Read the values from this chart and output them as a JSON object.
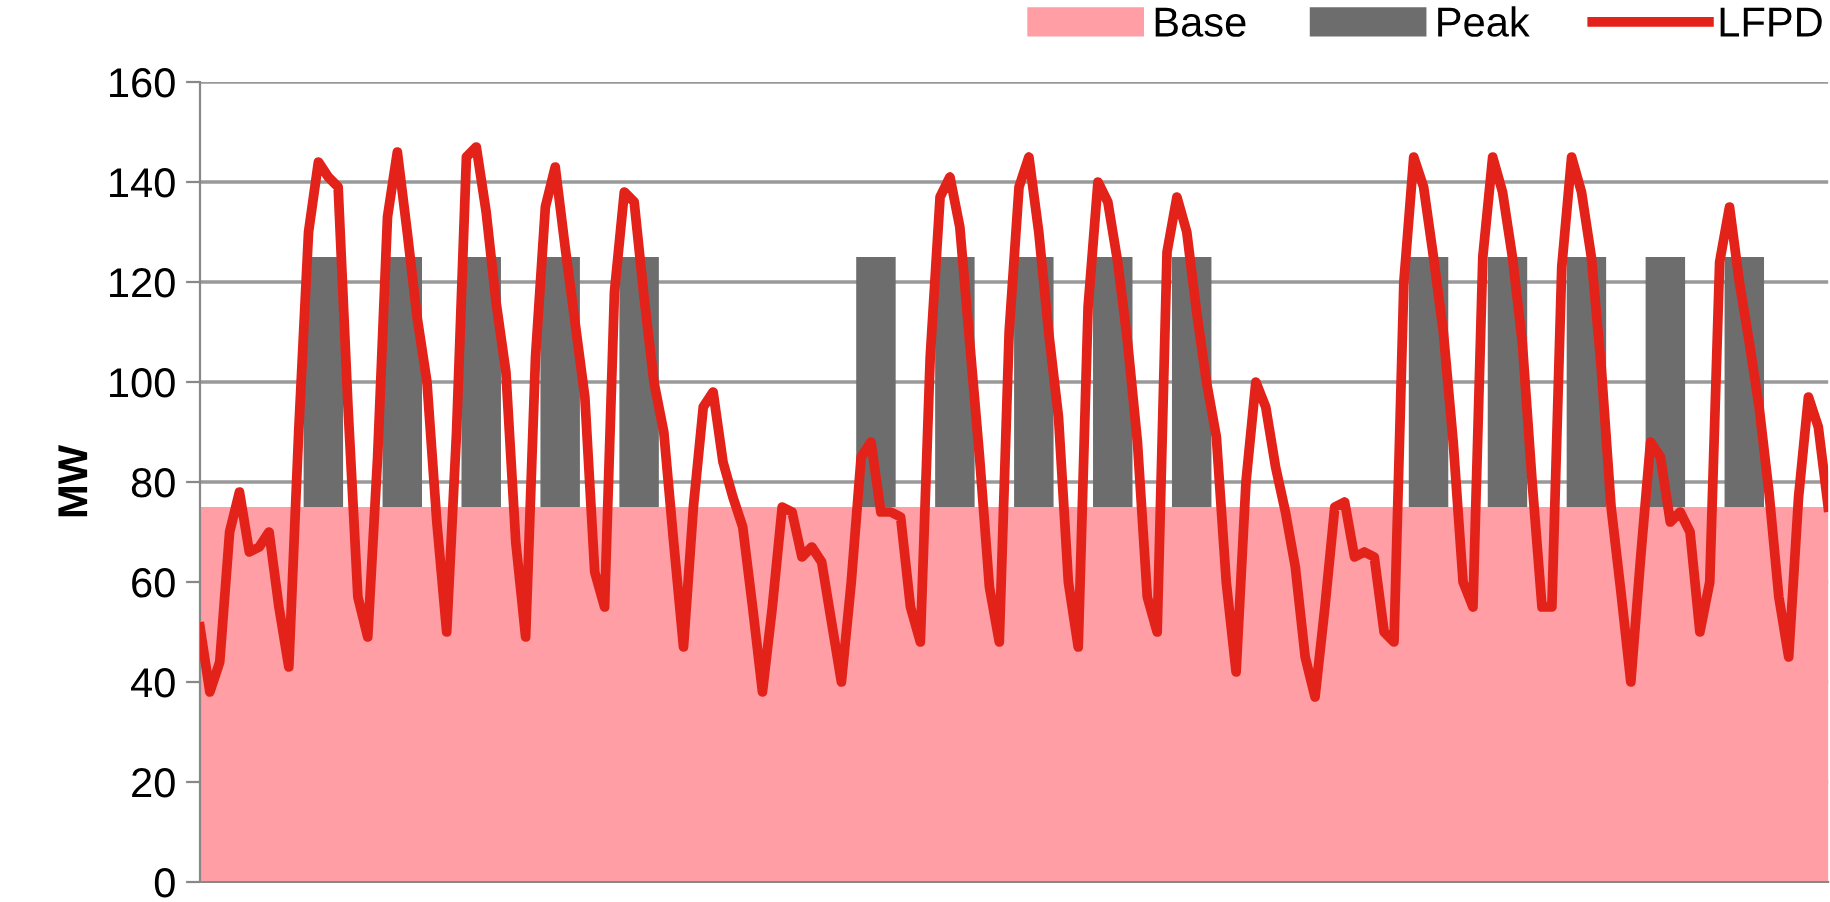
{
  "chart_data": {
    "type": "line",
    "ylabel": "MW",
    "stacked": true,
    "categories": [
      null,
      null,
      null,
      null,
      null,
      null,
      null,
      null,
      null,
      null,
      null,
      null,
      null,
      null,
      null,
      null,
      null,
      null,
      null,
      null,
      null,
      null,
      null,
      null,
      null,
      null,
      null,
      null,
      null,
      null,
      null,
      null,
      null,
      null,
      null,
      null,
      null,
      null,
      null,
      null,
      null,
      null,
      null,
      null,
      null,
      null,
      null,
      null,
      null,
      null,
      null,
      null,
      null,
      null,
      null,
      null,
      null,
      null,
      null,
      null,
      null,
      null,
      null,
      null,
      null,
      null,
      null,
      null,
      null,
      null,
      null,
      null,
      null,
      null,
      null,
      null,
      null,
      null,
      null,
      null,
      null,
      null,
      null,
      null,
      null,
      null,
      null,
      null,
      null,
      null,
      null,
      null,
      null,
      null,
      null,
      null,
      null,
      null,
      null,
      null,
      null,
      null,
      null,
      null,
      null,
      null,
      null,
      null,
      null,
      null,
      null,
      null,
      null,
      null,
      null,
      null,
      null,
      null,
      null,
      null,
      null,
      null,
      null,
      null,
      null,
      null,
      null,
      null,
      null,
      null,
      null,
      null,
      null,
      null,
      null,
      null,
      null,
      null,
      null,
      null,
      null,
      null,
      null,
      null,
      null,
      null,
      null,
      null,
      null,
      null,
      null,
      null,
      null,
      null,
      null,
      null,
      null,
      null,
      null,
      null,
      null,
      null,
      null,
      null,
      null,
      null
    ],
    "series": [
      {
        "name": "Base",
        "type": "area",
        "color": "#ff9ea5",
        "values": [
          75,
          75,
          75,
          75,
          75,
          75,
          75,
          75,
          75,
          75,
          75,
          75,
          75,
          75,
          75,
          75,
          75,
          75,
          75,
          75,
          75,
          75,
          75,
          75,
          75,
          75,
          75,
          75,
          75,
          75,
          75,
          75,
          75,
          75,
          75,
          75,
          75,
          75,
          75,
          75,
          75,
          75,
          75,
          75,
          75,
          75,
          75,
          75,
          75,
          75,
          75,
          75,
          75,
          75,
          75,
          75,
          75,
          75,
          75,
          75,
          75,
          75,
          75,
          75,
          75,
          75,
          75,
          75,
          75,
          75,
          75,
          75,
          75,
          75,
          75,
          75,
          75,
          75,
          75,
          75,
          75,
          75,
          75,
          75,
          75,
          75,
          75,
          75,
          75,
          75,
          75,
          75,
          75,
          75,
          75,
          75,
          75,
          75,
          75,
          75,
          75,
          75,
          75,
          75,
          75,
          75,
          75,
          75,
          75,
          75,
          75,
          75,
          75,
          75,
          75,
          75,
          75,
          75,
          75,
          75,
          75,
          75,
          75,
          75,
          75,
          75,
          75,
          75,
          75,
          75,
          75,
          75,
          75,
          75,
          75,
          75,
          75,
          75,
          75,
          75,
          75,
          75,
          75,
          75,
          75,
          75,
          75,
          75,
          75,
          75,
          75,
          75,
          75,
          75,
          75,
          75,
          75,
          75,
          75,
          75,
          75,
          75,
          75,
          75,
          75,
          75
        ]
      },
      {
        "name": "Peak",
        "type": "area",
        "color": "#6d6d6d",
        "values": [
          null,
          null,
          null,
          null,
          null,
          null,
          null,
          null,
          null,
          null,
          null,
          50,
          50,
          50,
          50,
          null,
          null,
          null,
          null,
          50,
          50,
          50,
          50,
          null,
          null,
          null,
          null,
          50,
          50,
          50,
          50,
          null,
          null,
          null,
          null,
          50,
          50,
          50,
          50,
          null,
          null,
          null,
          null,
          50,
          50,
          50,
          50,
          null,
          null,
          null,
          null,
          null,
          null,
          null,
          null,
          null,
          null,
          null,
          null,
          null,
          null,
          null,
          null,
          null,
          null,
          null,
          null,
          50,
          50,
          50,
          50,
          null,
          null,
          null,
          null,
          50,
          50,
          50,
          50,
          null,
          null,
          null,
          null,
          50,
          50,
          50,
          50,
          null,
          null,
          null,
          null,
          50,
          50,
          50,
          50,
          null,
          null,
          null,
          null,
          50,
          50,
          50,
          50,
          null,
          null,
          null,
          null,
          null,
          null,
          null,
          null,
          null,
          null,
          null,
          null,
          null,
          null,
          null,
          null,
          null,
          null,
          null,
          null,
          50,
          50,
          50,
          50,
          null,
          null,
          null,
          null,
          50,
          50,
          50,
          50,
          null,
          null,
          null,
          null,
          50,
          50,
          50,
          50,
          null,
          null,
          null,
          null,
          50,
          50,
          50,
          50,
          null,
          null,
          null,
          null,
          50,
          50,
          50,
          50,
          null,
          null,
          null,
          null,
          null,
          null,
          null
        ]
      },
      {
        "name": "LFPD",
        "color": "#e3231a",
        "values": [
          51,
          38,
          44,
          70,
          78,
          66,
          67,
          70,
          55,
          43,
          90,
          130,
          144,
          141,
          139,
          95,
          57,
          49,
          85,
          133,
          146,
          130,
          113,
          100,
          72,
          50,
          90,
          145,
          147,
          134,
          116,
          102,
          68,
          49,
          105,
          135,
          143,
          127,
          112,
          97,
          62,
          55,
          118,
          138,
          136,
          117,
          100,
          90,
          68,
          47,
          75,
          95,
          98,
          84,
          77,
          71,
          55,
          38,
          55,
          75,
          74,
          65,
          67,
          64,
          52,
          40,
          60,
          85,
          88,
          74,
          74,
          73,
          55,
          48,
          105,
          137,
          141,
          131,
          108,
          85,
          59,
          48,
          110,
          139,
          145,
          130,
          110,
          93,
          60,
          47,
          115,
          140,
          136,
          124,
          108,
          88,
          57,
          50,
          126,
          137,
          130,
          114,
          100,
          89,
          60,
          42,
          80,
          100,
          95,
          83,
          74,
          63,
          45,
          37,
          55,
          75,
          76,
          65,
          66,
          65,
          50,
          48,
          120,
          145,
          139,
          125,
          110,
          88,
          60,
          55,
          125,
          145,
          138,
          125,
          108,
          80,
          55,
          55,
          123,
          145,
          138,
          125,
          103,
          75,
          58,
          40,
          65,
          88,
          85,
          72,
          74,
          70,
          50,
          60,
          124,
          135,
          120,
          108,
          95,
          78,
          57,
          45,
          77,
          97,
          91,
          75
        ]
      }
    ],
    "ylim": [
      0,
      160
    ],
    "yticks": [
      0,
      20,
      40,
      60,
      80,
      100,
      120,
      140,
      160
    ],
    "grid": "y",
    "legend": "top right",
    "tick_labels": "y",
    "marker": "none",
    "line_style": "solid"
  }
}
